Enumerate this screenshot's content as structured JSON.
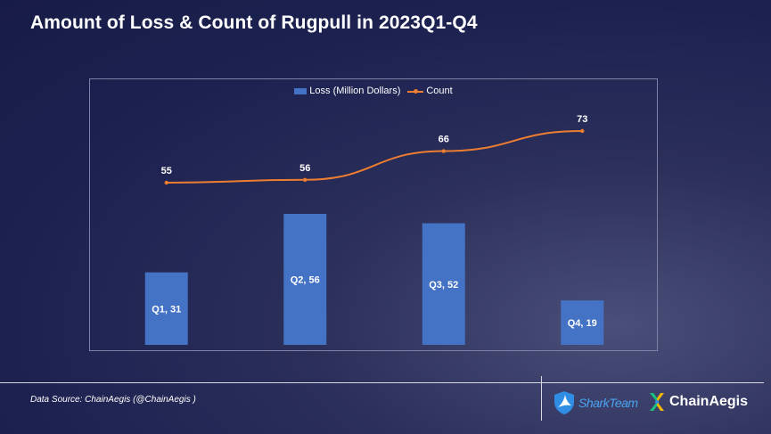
{
  "title": "Amount of Loss & Count of Rugpull in 2023Q1-Q4",
  "source": "Data Source: ChainAegis (@ChainAegis )",
  "logos": {
    "shark": "SharkTeam",
    "chain": "ChainAegis"
  },
  "colors": {
    "bar": "#4472c4",
    "line": "#ed7d31"
  },
  "chart_data": {
    "type": "bar",
    "categories": [
      "Q1",
      "Q2",
      "Q3",
      "Q4"
    ],
    "series": [
      {
        "name": "Loss (Million Dollars)",
        "type": "bar",
        "values": [
          31,
          56,
          52,
          19
        ]
      },
      {
        "name": "Count",
        "type": "line",
        "values": [
          55,
          56,
          66,
          73
        ]
      }
    ],
    "bar_labels": [
      "Q1,  31",
      "Q2,  56",
      "Q3,  52",
      "Q4,  19"
    ],
    "legend_position": "top",
    "grid": false
  }
}
